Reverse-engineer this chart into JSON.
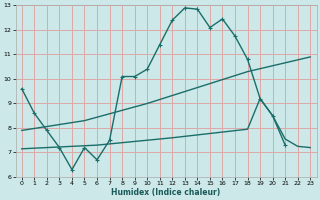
{
  "xlabel": "Humidex (Indice chaleur)",
  "background_color": "#cce8e8",
  "grid_color": "#dda8a8",
  "line_color": "#1a6e6a",
  "xlim": [
    -0.5,
    23.5
  ],
  "ylim": [
    6,
    13
  ],
  "xticks": [
    0,
    1,
    2,
    3,
    4,
    5,
    6,
    7,
    8,
    9,
    10,
    11,
    12,
    13,
    14,
    15,
    16,
    17,
    18,
    19,
    20,
    21,
    22,
    23
  ],
  "yticks": [
    6,
    7,
    8,
    9,
    10,
    11,
    12,
    13
  ],
  "line1_x": [
    0,
    1,
    2,
    3,
    4,
    5,
    6,
    7,
    8,
    9,
    10,
    11,
    12,
    13,
    14,
    15,
    16,
    17,
    18,
    19,
    20,
    21
  ],
  "line1_y": [
    9.6,
    8.6,
    7.9,
    7.2,
    6.3,
    7.2,
    6.7,
    7.5,
    10.1,
    10.1,
    10.4,
    11.4,
    12.4,
    12.9,
    12.85,
    12.1,
    12.45,
    11.75,
    10.8,
    9.2,
    8.5,
    7.3
  ],
  "line2_x": [
    0,
    5,
    10,
    18,
    23
  ],
  "line2_y": [
    7.9,
    8.3,
    9.0,
    10.3,
    10.9
  ],
  "line3_x": [
    0,
    6,
    12,
    18,
    19,
    20,
    21,
    22,
    23
  ],
  "line3_y": [
    7.15,
    7.3,
    7.6,
    7.95,
    9.2,
    8.5,
    7.55,
    7.25,
    7.2
  ]
}
